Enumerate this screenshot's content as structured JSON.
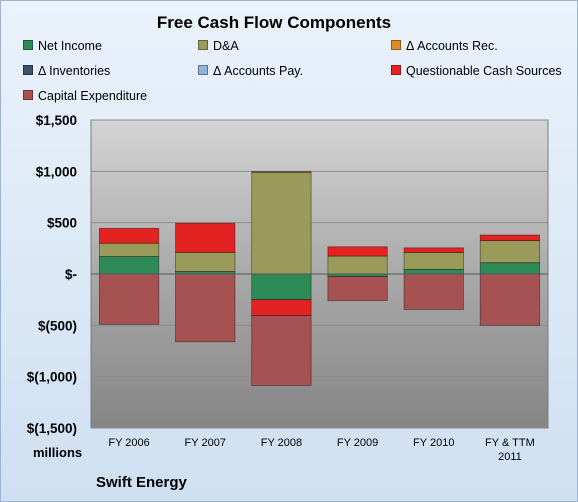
{
  "chart_data": {
    "type": "bar",
    "stacked": true,
    "title": "Free Cash Flow Components",
    "ylabel": "millions",
    "ylim": [
      -1500,
      1500
    ],
    "yticks": [
      1500,
      1000,
      500,
      0,
      -500,
      -1000,
      -1500
    ],
    "ytick_labels": [
      "$1,500",
      "$1,000",
      "$500",
      "$-",
      "$(500)",
      "$(1,000)",
      "$(1,500)"
    ],
    "categories": [
      [
        "FY 2006"
      ],
      [
        "FY 2007"
      ],
      [
        "FY 2008"
      ],
      [
        "FY 2009"
      ],
      [
        "FY 2010"
      ],
      [
        "FY & TTM",
        "2011"
      ]
    ],
    "legend": "top",
    "grid": true,
    "series": [
      {
        "name": "Net Income",
        "color": "#2e8b57",
        "values": [
          170,
          25,
          -250,
          -25,
          45,
          110
        ]
      },
      {
        "name": "D&A",
        "color": "#9a9a5a",
        "values": [
          130,
          185,
          990,
          175,
          165,
          215
        ]
      },
      {
        "name": "Δ Accounts Rec.",
        "color": "#e08a2a",
        "values": [
          0,
          0,
          8,
          0,
          0,
          0
        ]
      },
      {
        "name": "Δ Inventories",
        "color": "#3c5068",
        "values": [
          0,
          0,
          0,
          0,
          0,
          0
        ]
      },
      {
        "name": "Δ Accounts Pay.",
        "color": "#8fb3d9",
        "values": [
          0,
          0,
          0,
          0,
          0,
          0
        ]
      },
      {
        "name": "Questionable Cash Sources",
        "color": "#e32222",
        "values": [
          145,
          285,
          -155,
          90,
          45,
          55
        ]
      },
      {
        "name": "Capital Expenditure",
        "color": "#a65252",
        "values": [
          -490,
          -660,
          -680,
          -235,
          -345,
          -500
        ]
      }
    ]
  },
  "footer": {
    "units": "millions",
    "brand": "Swift Energy"
  }
}
